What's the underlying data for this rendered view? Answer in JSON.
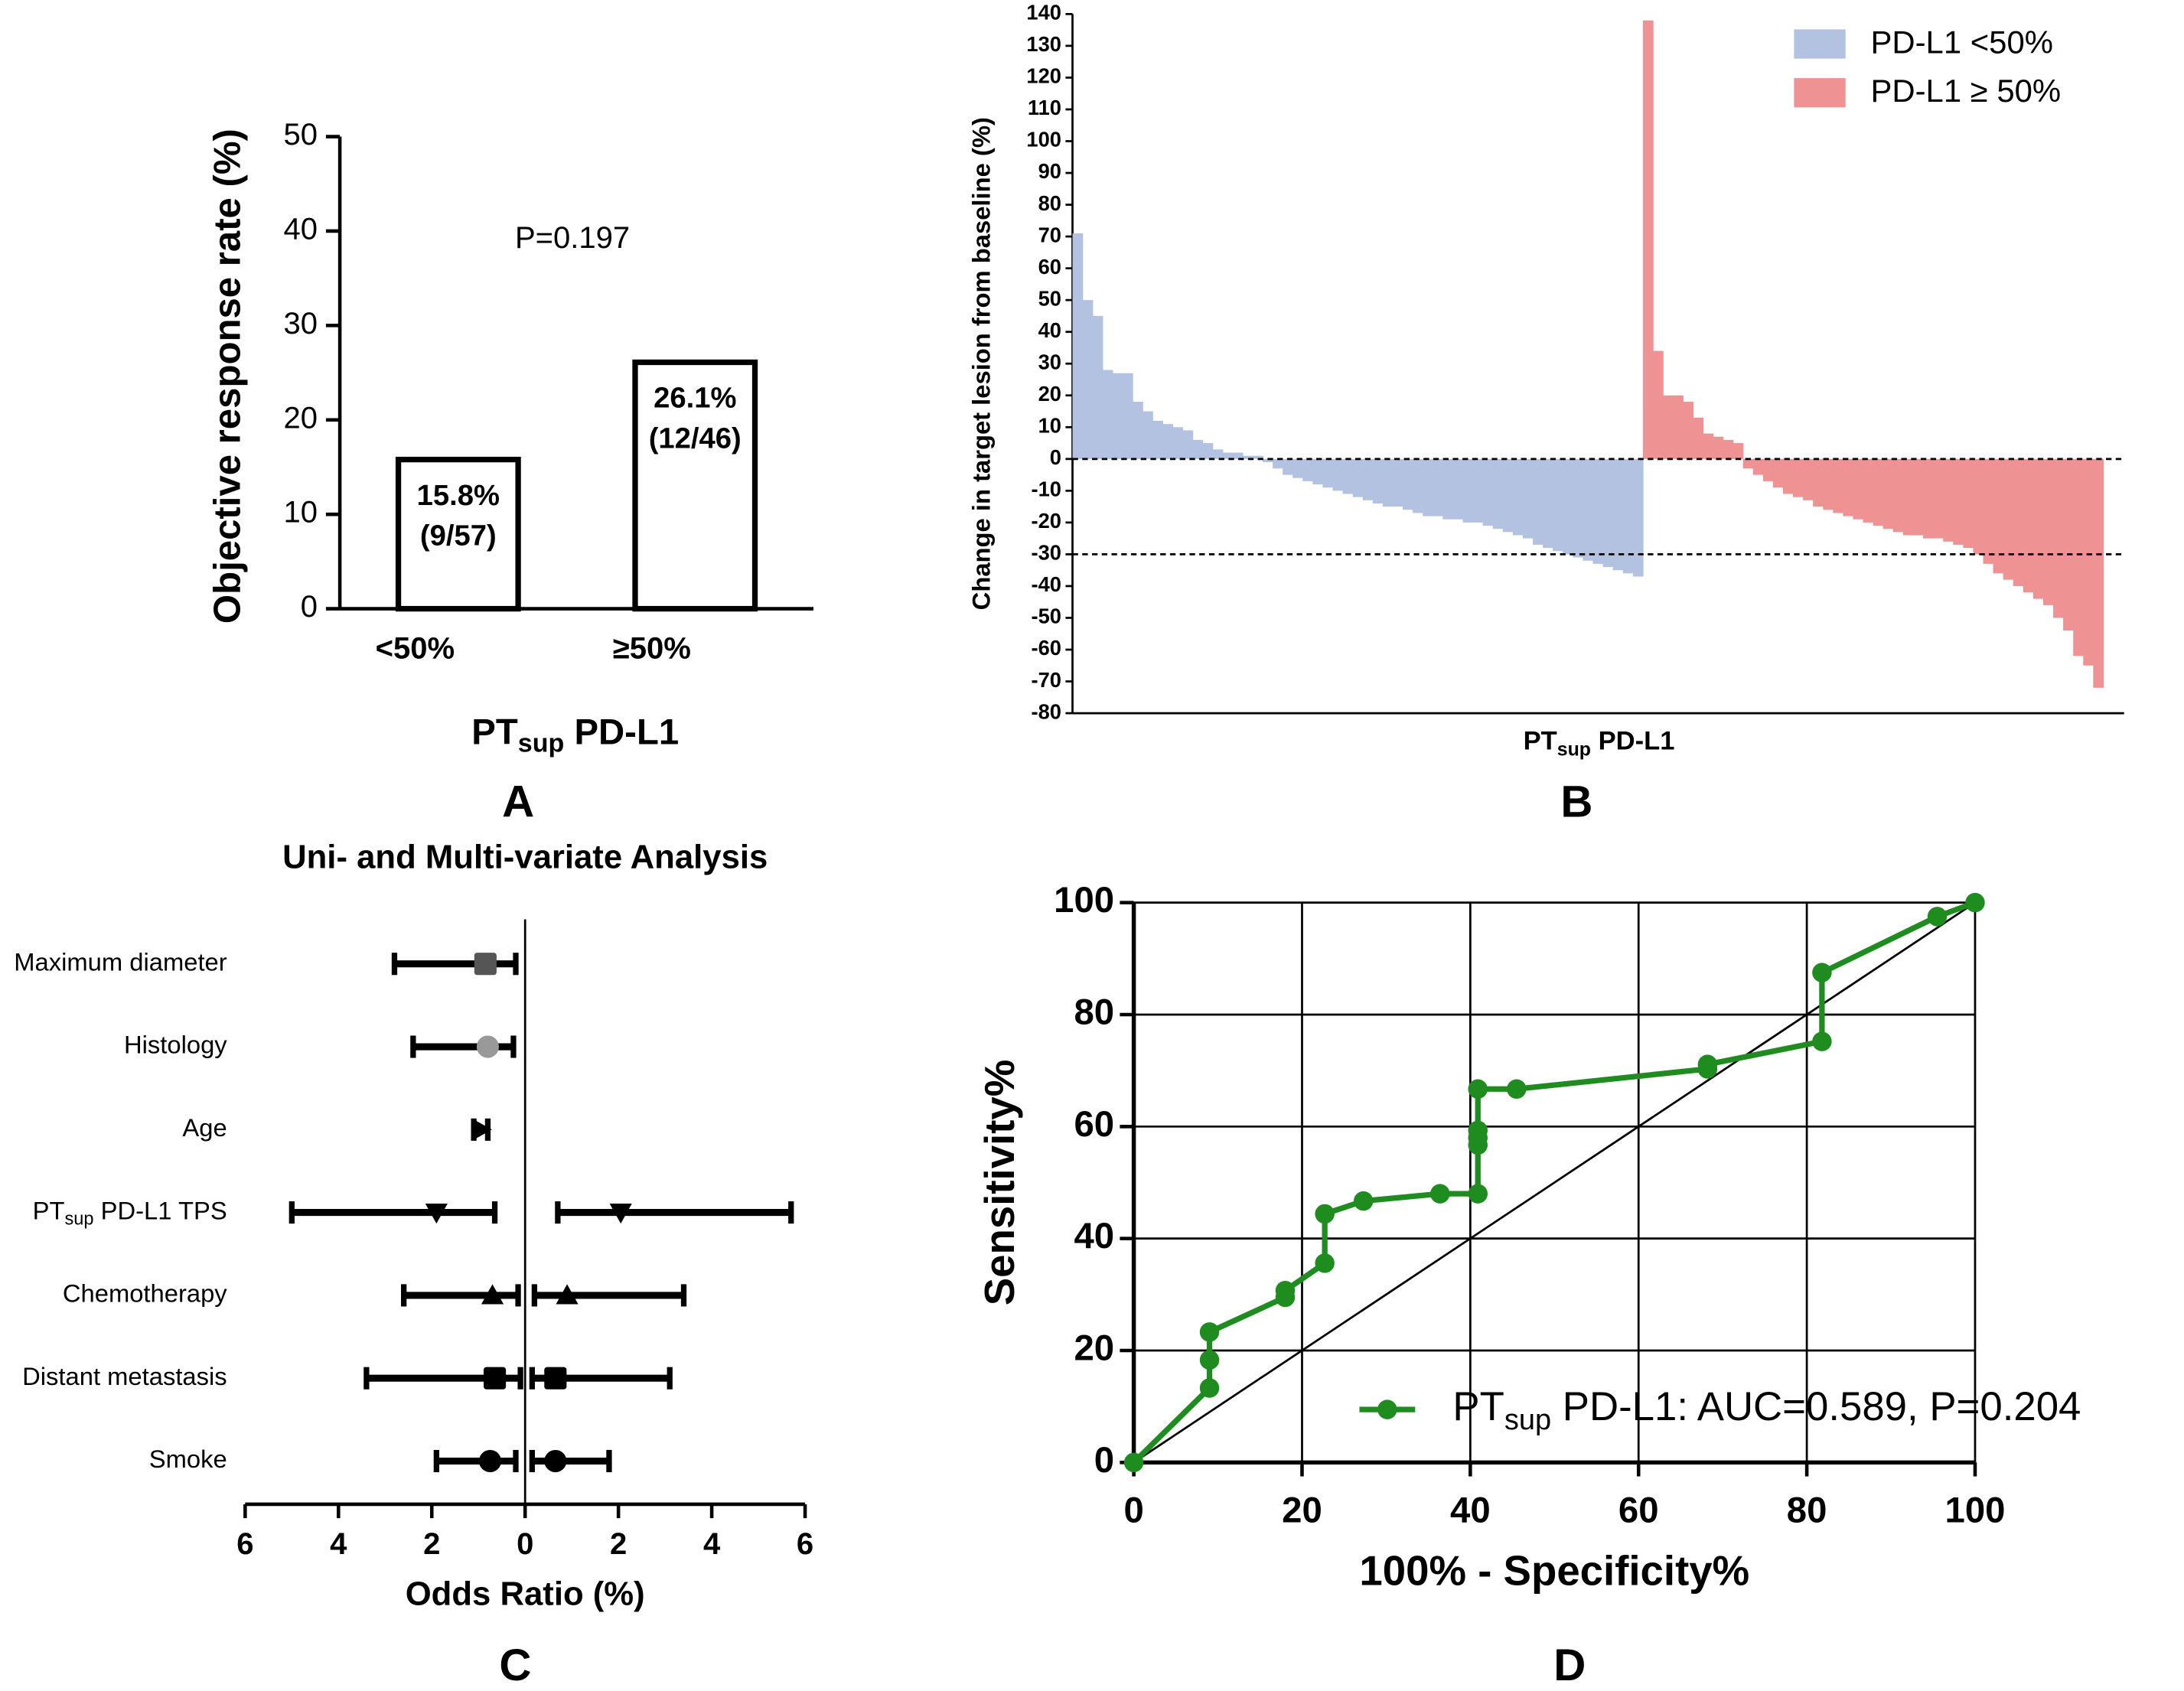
{
  "chart_data": [
    {
      "type": "bar",
      "panel_label": "A",
      "y_label": "Objective response rate (%)",
      "x_label": [
        "PT",
        "sup",
        " PD-L1"
      ],
      "annotation": "P=0.197",
      "categories": [
        "<50%",
        "≥50%"
      ],
      "values": [
        15.8,
        26.1
      ],
      "value_labels": [
        "15.8%",
        "26.1%"
      ],
      "counts": [
        "(9/57)",
        "(12/46)"
      ],
      "color": "#ffffff",
      "edge_color": "#000000",
      "ylim": [
        0,
        50
      ],
      "yticks": [
        0,
        10,
        20,
        30,
        40,
        50
      ]
    },
    {
      "type": "waterfall",
      "panel_label": "B",
      "y_label": "Change in target lesion from baseline (%)",
      "x_label": [
        "PT",
        "sup",
        " PD-L1"
      ],
      "series": [
        {
          "name": "PD-L1 <50%",
          "color": "#b4c2e2",
          "values": [
            71,
            50,
            45,
            28,
            27,
            27,
            18,
            15,
            12,
            11,
            10,
            9,
            6,
            5,
            3,
            2,
            2,
            1,
            1,
            -1,
            -3,
            -5,
            -6,
            -7,
            -8,
            -9,
            -10,
            -11,
            -12,
            -13,
            -14,
            -15,
            -15,
            -16,
            -17,
            -18,
            -18,
            -19,
            -19,
            -20,
            -20,
            -21,
            -22,
            -23,
            -24,
            -25,
            -27,
            -28,
            -29,
            -30,
            -31,
            -32,
            -33,
            -34,
            -35,
            -36,
            -37
          ]
        },
        {
          "name": "PD-L1 ≥ 50%",
          "color": "#ee9293",
          "values": [
            138,
            34,
            20,
            20,
            18,
            13,
            8,
            7,
            6,
            5,
            -3,
            -5,
            -7,
            -9,
            -11,
            -12,
            -13,
            -15,
            -16,
            -17,
            -18,
            -19,
            -20,
            -21,
            -22,
            -23,
            -24,
            -24,
            -25,
            -25,
            -26,
            -27,
            -28,
            -30,
            -33,
            -36,
            -38,
            -40,
            -42,
            -44,
            -46,
            -50,
            -54,
            -62,
            -65,
            -72
          ]
        }
      ],
      "ylim": [
        -80,
        140
      ],
      "yticks": [
        -80,
        -70,
        -60,
        -50,
        -40,
        -30,
        -20,
        -10,
        0,
        10,
        20,
        30,
        40,
        50,
        60,
        70,
        80,
        90,
        100,
        110,
        120,
        130,
        140
      ],
      "reference_lines": [
        0,
        -30
      ],
      "legend": "upper right"
    },
    {
      "type": "forest",
      "panel_label": "C",
      "title": "Uni- and Multi-variate Analysis",
      "x_label": "Odds Ratio (%)",
      "categories": [
        "Maximum diameter",
        "Histology",
        "Age",
        [
          "PT",
          "sup",
          " PD-L1 TPS"
        ],
        "Chemotherapy",
        "Distant metastasis",
        "Smoke"
      ],
      "markers": [
        "square",
        "circle",
        "triangle-right",
        "triangle-down",
        "triangle-up",
        "square",
        "circle"
      ],
      "marker_colors": [
        "#555555",
        "#999999",
        "#000000",
        "#000000",
        "#000000",
        "#000000",
        "#000000"
      ],
      "color": "#000000",
      "series": [
        {
          "values": [
            -0.85,
            -0.8,
            -0.95,
            -1.9,
            -0.7,
            -0.65,
            -0.75
          ],
          "lower": [
            -2.8,
            -2.4,
            -1.1,
            -5.0,
            -2.6,
            -3.4,
            -1.9
          ],
          "upper": [
            -0.2,
            -0.25,
            -0.8,
            -0.65,
            -0.15,
            -0.1,
            -0.2
          ]
        },
        {
          "values": [
            null,
            null,
            null,
            2.05,
            0.9,
            0.65,
            0.65
          ],
          "lower": [
            null,
            null,
            null,
            0.7,
            0.2,
            0.15,
            0.15
          ],
          "upper": [
            null,
            null,
            null,
            5.7,
            3.4,
            3.1,
            1.8
          ]
        }
      ],
      "xlim": [
        -6,
        6
      ],
      "xticks": [
        {
          "value": -6,
          "label": "6"
        },
        {
          "value": -4,
          "label": "4"
        },
        {
          "value": -2,
          "label": "2"
        },
        0,
        2,
        4,
        6
      ]
    },
    {
      "type": "line",
      "panel_label": "D",
      "x_label": "100% - Specificity%",
      "y_label": "Sensitivity%",
      "series": [
        {
          "name": [
            "PT",
            "sup",
            " PD-L1: AUC=0.589, P=0.204"
          ],
          "color": "#1e8c1e",
          "x": [
            0,
            9,
            9,
            9,
            18,
            18,
            22.7,
            22.7,
            27.3,
            36.4,
            40.9,
            40.9,
            40.9,
            40.9,
            40.9,
            45.5,
            68.2,
            68.2,
            81.8,
            81.8,
            95.5,
            100
          ],
          "values": [
            0,
            13.3,
            18.3,
            23.3,
            29.5,
            30.7,
            35.6,
            44.4,
            46.7,
            48,
            48,
            56.7,
            58,
            59.3,
            66.7,
            66.7,
            70.3,
            71.1,
            75.2,
            87.5,
            97.5,
            100
          ]
        }
      ],
      "xlim": [
        0,
        100
      ],
      "ylim": [
        0,
        100
      ],
      "xticks": [
        0,
        20,
        40,
        60,
        80,
        100
      ],
      "yticks": [
        0,
        20,
        40,
        60,
        80,
        100
      ],
      "grid": true,
      "legend": "lower right"
    }
  ]
}
